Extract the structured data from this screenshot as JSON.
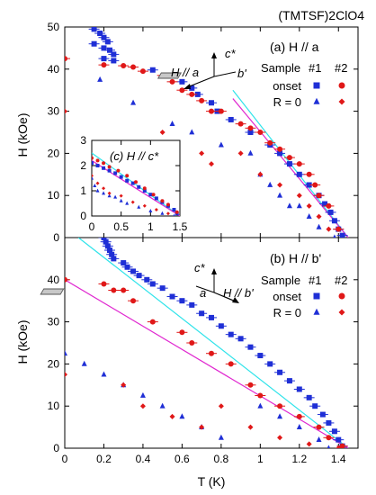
{
  "figure_title": "(TMTSF)2ClO4",
  "colors": {
    "onset": "#1f2fd6",
    "r0": "#1f2fd6",
    "onset2": "#e01818",
    "r02": "#e01818",
    "cyan": "#2fe3ea",
    "magenta": "#e028d0"
  },
  "chart_data": [
    {
      "type": "scatter",
      "panel": "(a) H // a",
      "ylabel": "H (kOe)",
      "xlim": [
        0,
        1.5
      ],
      "ylim": [
        0,
        50
      ],
      "yticks": [
        "0",
        "10",
        "20",
        "30",
        "40",
        "50"
      ],
      "legend": {
        "sample_label": "Sample",
        "col1": "#1",
        "col2": "#2",
        "row_onset": "onset",
        "row_r0": "R = 0",
        "placement": "top-right"
      },
      "axis_labels": {
        "cstar": "c*",
        "bprime": "b'",
        "field": "H // a"
      },
      "series": [
        {
          "name": "onset #1",
          "marker": "square",
          "color": "#1f2fd6",
          "points": [
            [
              0.15,
              49.5
            ],
            [
              0.18,
              48.5
            ],
            [
              0.2,
              47.5
            ],
            [
              0.22,
              46.5
            ],
            [
              0.15,
              46
            ],
            [
              0.2,
              45
            ],
            [
              0.23,
              44.5
            ],
            [
              0.25,
              43.5
            ],
            [
              0.2,
              42.5
            ],
            [
              0.25,
              42
            ],
            [
              0.45,
              39.8
            ],
            [
              0.55,
              38.5
            ],
            [
              0.6,
              37
            ],
            [
              0.65,
              35.5
            ],
            [
              0.68,
              34
            ],
            [
              0.75,
              32
            ],
            [
              0.78,
              30
            ],
            [
              0.85,
              28
            ],
            [
              0.95,
              25
            ],
            [
              1.05,
              22
            ],
            [
              1.1,
              20
            ],
            [
              1.15,
              17.5
            ],
            [
              1.2,
              15
            ],
            [
              1.25,
              12.5
            ],
            [
              1.3,
              10
            ],
            [
              1.33,
              8
            ],
            [
              1.36,
              6
            ],
            [
              1.38,
              4
            ],
            [
              1.4,
              2
            ],
            [
              1.42,
              0.5
            ]
          ]
        },
        {
          "name": "onset #2",
          "marker": "circle",
          "color": "#e01818",
          "points": [
            [
              0,
              42.5
            ],
            [
              0.2,
              41
            ],
            [
              0.3,
              40.8
            ],
            [
              0.35,
              40.5
            ],
            [
              0.4,
              39.5
            ],
            [
              0.5,
              38.5
            ],
            [
              0.55,
              37
            ],
            [
              0.6,
              35
            ],
            [
              0.65,
              34
            ],
            [
              0.7,
              32.5
            ],
            [
              0.75,
              30
            ],
            [
              0.8,
              30
            ],
            [
              0.9,
              27
            ],
            [
              0.95,
              26
            ],
            [
              1.0,
              25
            ],
            [
              1.05,
              22.5
            ],
            [
              1.1,
              21
            ],
            [
              1.15,
              19
            ],
            [
              1.2,
              17.5
            ],
            [
              1.25,
              15
            ],
            [
              1.28,
              12.5
            ],
            [
              1.3,
              10
            ],
            [
              1.35,
              7.5
            ],
            [
              1.4,
              2
            ]
          ]
        },
        {
          "name": "R = 0 #1",
          "marker": "triangle",
          "color": "#1f2fd6",
          "points": [
            [
              0.18,
              37.5
            ],
            [
              0.35,
              32
            ],
            [
              0.55,
              27
            ],
            [
              0.65,
              25
            ],
            [
              0.8,
              22
            ],
            [
              0.95,
              20
            ],
            [
              1.0,
              15
            ],
            [
              1.05,
              12.5
            ],
            [
              1.1,
              10
            ],
            [
              1.15,
              7.5
            ],
            [
              1.2,
              7.5
            ],
            [
              1.25,
              5
            ],
            [
              1.3,
              2.5
            ],
            [
              1.38,
              0
            ]
          ]
        },
        {
          "name": "R = 0 #2",
          "marker": "diamond",
          "color": "#e01818",
          "points": [
            [
              0,
              30
            ],
            [
              0.5,
              25
            ],
            [
              0.7,
              20
            ],
            [
              0.75,
              17.5
            ],
            [
              0.9,
              20
            ],
            [
              1.0,
              15
            ],
            [
              1.1,
              12.5
            ],
            [
              1.2,
              10
            ],
            [
              1.25,
              7.5
            ],
            [
              1.3,
              5
            ],
            [
              1.35,
              2
            ]
          ]
        }
      ],
      "lines": [
        {
          "name": "cyan",
          "color": "#2fe3ea",
          "from": [
            0.86,
            35
          ],
          "to": [
            1.45,
            0
          ]
        },
        {
          "name": "magenta",
          "color": "#e028d0",
          "from": [
            0.86,
            33
          ],
          "to": [
            1.45,
            0
          ]
        }
      ],
      "inset": {
        "label": "(c) H // c*",
        "xlim": [
          0,
          1.5
        ],
        "ylim": [
          0,
          3
        ],
        "xticks": [
          "0",
          "0.5",
          "1",
          "1.5"
        ],
        "yticks": [
          "0",
          "1",
          "2",
          "3"
        ],
        "series": [
          {
            "name": "onset #1",
            "marker": "square",
            "color": "#1f2fd6",
            "points": [
              [
                0,
                2.1
              ],
              [
                0.1,
                2.0
              ],
              [
                0.2,
                1.9
              ],
              [
                0.3,
                1.8
              ],
              [
                0.4,
                1.7
              ],
              [
                0.5,
                1.55
              ],
              [
                0.6,
                1.4
              ],
              [
                0.7,
                1.3
              ],
              [
                0.8,
                1.15
              ],
              [
                0.9,
                1.0
              ],
              [
                1.0,
                0.85
              ],
              [
                1.1,
                0.7
              ],
              [
                1.2,
                0.55
              ],
              [
                1.3,
                0.4
              ],
              [
                1.4,
                0.25
              ],
              [
                1.45,
                0.1
              ]
            ]
          },
          {
            "name": "onset #2",
            "marker": "circle",
            "color": "#e01818",
            "points": [
              [
                0,
                2.3
              ],
              [
                0.1,
                2.2
              ],
              [
                0.2,
                2.1
              ],
              [
                0.3,
                1.95
              ],
              [
                0.45,
                1.8
              ],
              [
                0.6,
                1.6
              ],
              [
                0.75,
                1.35
              ],
              [
                0.9,
                1.1
              ],
              [
                1.05,
                0.85
              ],
              [
                1.2,
                0.6
              ],
              [
                1.3,
                0.45
              ],
              [
                1.45,
                0.15
              ]
            ]
          },
          {
            "name": "R = 0 #1",
            "marker": "triangle",
            "color": "#1f2fd6",
            "points": [
              [
                0,
                1.5
              ],
              [
                0.05,
                1.2
              ],
              [
                0.1,
                1.0
              ],
              [
                0.2,
                0.9
              ],
              [
                0.3,
                0.8
              ],
              [
                0.4,
                0.75
              ],
              [
                0.5,
                0.6
              ],
              [
                0.6,
                0.5
              ],
              [
                0.8,
                0.35
              ],
              [
                1.0,
                0.2
              ],
              [
                1.2,
                0.1
              ],
              [
                1.4,
                0.0
              ]
            ]
          },
          {
            "name": "R = 0 #2",
            "marker": "diamond",
            "color": "#e01818",
            "points": [
              [
                0,
                1.6
              ],
              [
                0.1,
                1.3
              ],
              [
                0.2,
                1.1
              ],
              [
                0.3,
                0.9
              ],
              [
                0.5,
                0.8
              ],
              [
                0.7,
                0.55
              ],
              [
                0.9,
                0.4
              ],
              [
                1.1,
                0.25
              ],
              [
                1.3,
                0.1
              ]
            ]
          }
        ],
        "lines": [
          {
            "name": "cyan",
            "color": "#2fe3ea",
            "from": [
              0,
              2.5
            ],
            "to": [
              1.5,
              0
            ]
          },
          {
            "name": "magenta",
            "color": "#e028d0",
            "from": [
              0,
              2.2
            ],
            "to": [
              1.5,
              0
            ]
          }
        ]
      }
    },
    {
      "type": "scatter",
      "panel": "(b) H // b'",
      "xlabel": "T (K)",
      "ylabel": "H (kOe)",
      "xlim": [
        0,
        1.5
      ],
      "ylim": [
        0,
        50
      ],
      "xticks": [
        "0",
        "0.2",
        "0.4",
        "0.6",
        "0.8",
        "1",
        "1.2",
        "1.4"
      ],
      "yticks": [
        "0",
        "10",
        "20",
        "30",
        "40"
      ],
      "legend": {
        "sample_label": "Sample",
        "col1": "#1",
        "col2": "#2",
        "row_onset": "onset",
        "row_r0": "R = 0",
        "placement": "top-right"
      },
      "axis_labels": {
        "cstar": "c*",
        "a": "a",
        "field": "H // b'"
      },
      "series": [
        {
          "name": "onset #1",
          "marker": "square",
          "color": "#1f2fd6",
          "points": [
            [
              0.2,
              50
            ],
            [
              0.21,
              49
            ],
            [
              0.22,
              48
            ],
            [
              0.23,
              47
            ],
            [
              0.24,
              46
            ],
            [
              0.25,
              45
            ],
            [
              0.3,
              44
            ],
            [
              0.32,
              43
            ],
            [
              0.35,
              42
            ],
            [
              0.38,
              41
            ],
            [
              0.42,
              40
            ],
            [
              0.45,
              39
            ],
            [
              0.5,
              38
            ],
            [
              0.55,
              36
            ],
            [
              0.6,
              35
            ],
            [
              0.65,
              34
            ],
            [
              0.7,
              32
            ],
            [
              0.75,
              31
            ],
            [
              0.8,
              29
            ],
            [
              0.85,
              27
            ],
            [
              0.9,
              26
            ],
            [
              0.95,
              24
            ],
            [
              1.0,
              22
            ],
            [
              1.05,
              20
            ],
            [
              1.1,
              18
            ],
            [
              1.15,
              16
            ],
            [
              1.2,
              14
            ],
            [
              1.25,
              12
            ],
            [
              1.28,
              10
            ],
            [
              1.32,
              8
            ],
            [
              1.35,
              6
            ],
            [
              1.38,
              4
            ],
            [
              1.4,
              2
            ],
            [
              1.42,
              0.5
            ]
          ]
        },
        {
          "name": "onset #2",
          "marker": "circle",
          "color": "#e01818",
          "points": [
            [
              0,
              40
            ],
            [
              0.2,
              39
            ],
            [
              0.25,
              37.5
            ],
            [
              0.3,
              37.5
            ],
            [
              0.35,
              35
            ],
            [
              0.45,
              30
            ],
            [
              0.6,
              27.5
            ],
            [
              0.65,
              25
            ],
            [
              0.75,
              22.5
            ],
            [
              0.85,
              20
            ],
            [
              0.95,
              15
            ],
            [
              1.0,
              12.5
            ],
            [
              1.1,
              10
            ],
            [
              1.2,
              7.5
            ],
            [
              1.3,
              5
            ],
            [
              1.35,
              2.5
            ],
            [
              1.42,
              0.5
            ]
          ]
        },
        {
          "name": "R = 0 #1",
          "marker": "triangle",
          "color": "#1f2fd6",
          "points": [
            [
              0,
              22.5
            ],
            [
              0.1,
              20
            ],
            [
              0.2,
              17.5
            ],
            [
              0.3,
              15
            ],
            [
              0.4,
              12.5
            ],
            [
              0.5,
              10
            ],
            [
              0.6,
              7.5
            ],
            [
              0.7,
              5
            ],
            [
              0.8,
              2.5
            ],
            [
              1.0,
              10
            ],
            [
              1.1,
              7.5
            ],
            [
              1.2,
              5
            ],
            [
              1.3,
              2
            ],
            [
              1.35,
              0
            ]
          ]
        },
        {
          "name": "R = 0 #2",
          "marker": "diamond",
          "color": "#e01818",
          "points": [
            [
              0,
              17.5
            ],
            [
              0.3,
              15
            ],
            [
              0.4,
              10
            ],
            [
              0.55,
              7.5
            ],
            [
              0.7,
              5
            ],
            [
              0.8,
              10
            ],
            [
              0.95,
              5
            ],
            [
              1.1,
              2.5
            ],
            [
              1.25,
              1
            ],
            [
              1.4,
              0
            ]
          ]
        }
      ],
      "lines": [
        {
          "name": "cyan",
          "color": "#2fe3ea",
          "from": [
            0.07,
            50
          ],
          "to": [
            1.45,
            0
          ]
        },
        {
          "name": "magenta",
          "color": "#e028d0",
          "from": [
            0,
            40
          ],
          "to": [
            1.45,
            0
          ]
        }
      ]
    }
  ]
}
